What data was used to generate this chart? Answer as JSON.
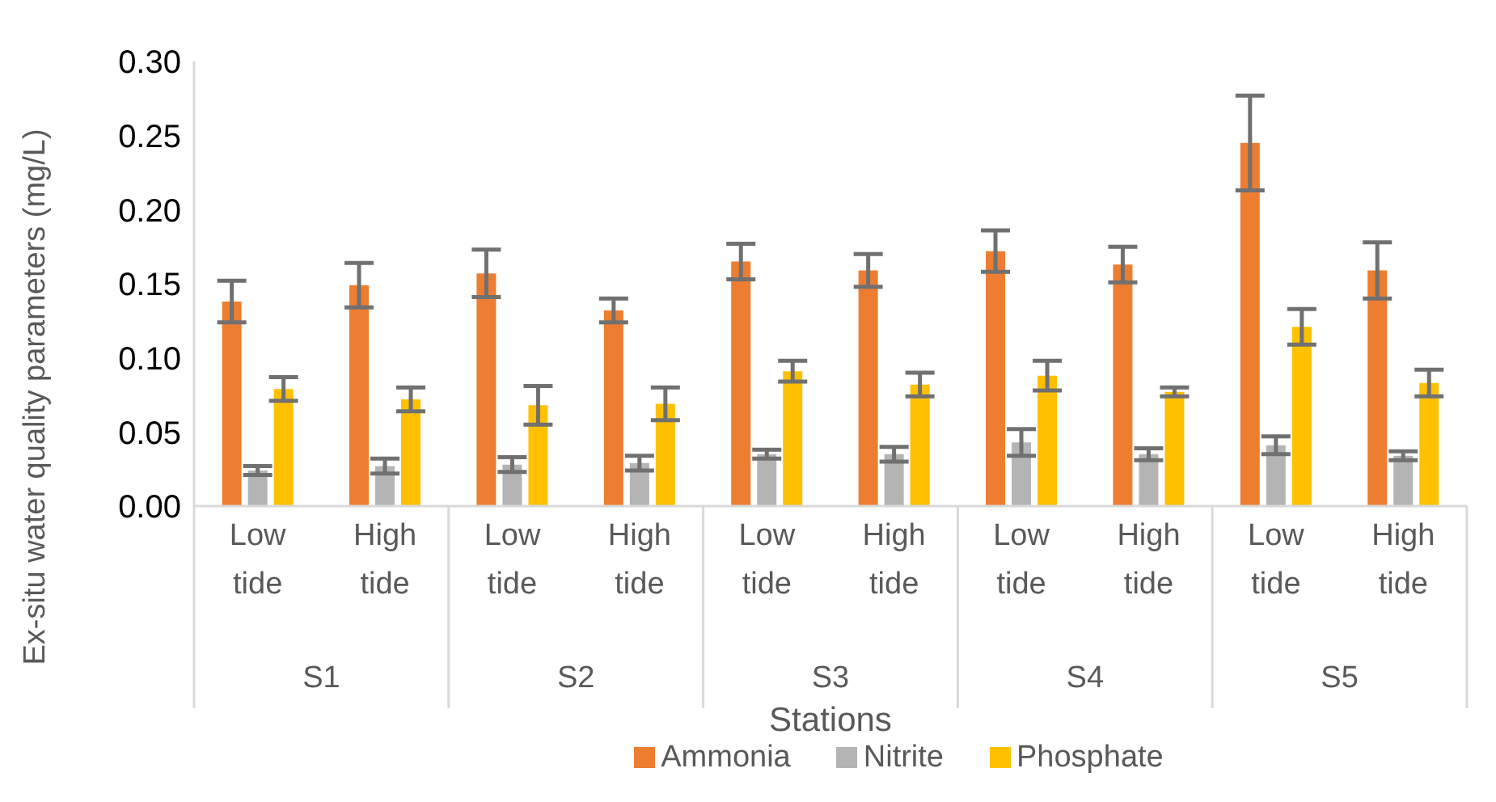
{
  "chart_data": {
    "type": "bar",
    "xlabel": "Stations",
    "ylabel": "Ex-situ water quality parameters (mg/L)",
    "categories": [
      "Low tide",
      "High tide",
      "Low tide",
      "High tide",
      "Low tide",
      "High tide",
      "Low tide",
      "High tide",
      "Low tide",
      "High tide"
    ],
    "annotations": [
      "S1",
      "S2",
      "S3",
      "S4",
      "S5"
    ],
    "series": [
      {
        "name": "Ammonia",
        "color": "#ed7d31",
        "values": [
          0.138,
          0.149,
          0.157,
          0.132,
          0.165,
          0.159,
          0.172,
          0.163,
          0.245,
          0.159
        ],
        "errors": [
          0.014,
          0.015,
          0.016,
          0.008,
          0.012,
          0.011,
          0.014,
          0.012,
          0.032,
          0.019
        ]
      },
      {
        "name": "Nitrite",
        "color": "#b4b4b4",
        "values": [
          0.024,
          0.027,
          0.028,
          0.029,
          0.035,
          0.035,
          0.043,
          0.035,
          0.041,
          0.034
        ],
        "errors": [
          0.003,
          0.005,
          0.005,
          0.005,
          0.003,
          0.005,
          0.009,
          0.004,
          0.006,
          0.003
        ]
      },
      {
        "name": "Phosphate",
        "color": "#ffc000",
        "values": [
          0.079,
          0.072,
          0.068,
          0.069,
          0.091,
          0.082,
          0.088,
          0.077,
          0.121,
          0.083
        ],
        "errors": [
          0.008,
          0.008,
          0.013,
          0.011,
          0.007,
          0.008,
          0.01,
          0.003,
          0.012,
          0.009
        ]
      }
    ],
    "ylim": [
      0,
      0.3
    ],
    "yticks": [
      {
        "value": 0,
        "label": "0.00"
      },
      {
        "value": 0.05,
        "label": "0.05"
      },
      {
        "value": 0.1,
        "label": "0.10"
      },
      {
        "value": 0.15,
        "label": "0.15"
      },
      {
        "value": 0.2,
        "label": "0.20"
      },
      {
        "value": 0.25,
        "label": "0.25"
      },
      {
        "value": 0.3,
        "label": "0.30"
      }
    ],
    "grid": false,
    "legend": "bottom"
  }
}
